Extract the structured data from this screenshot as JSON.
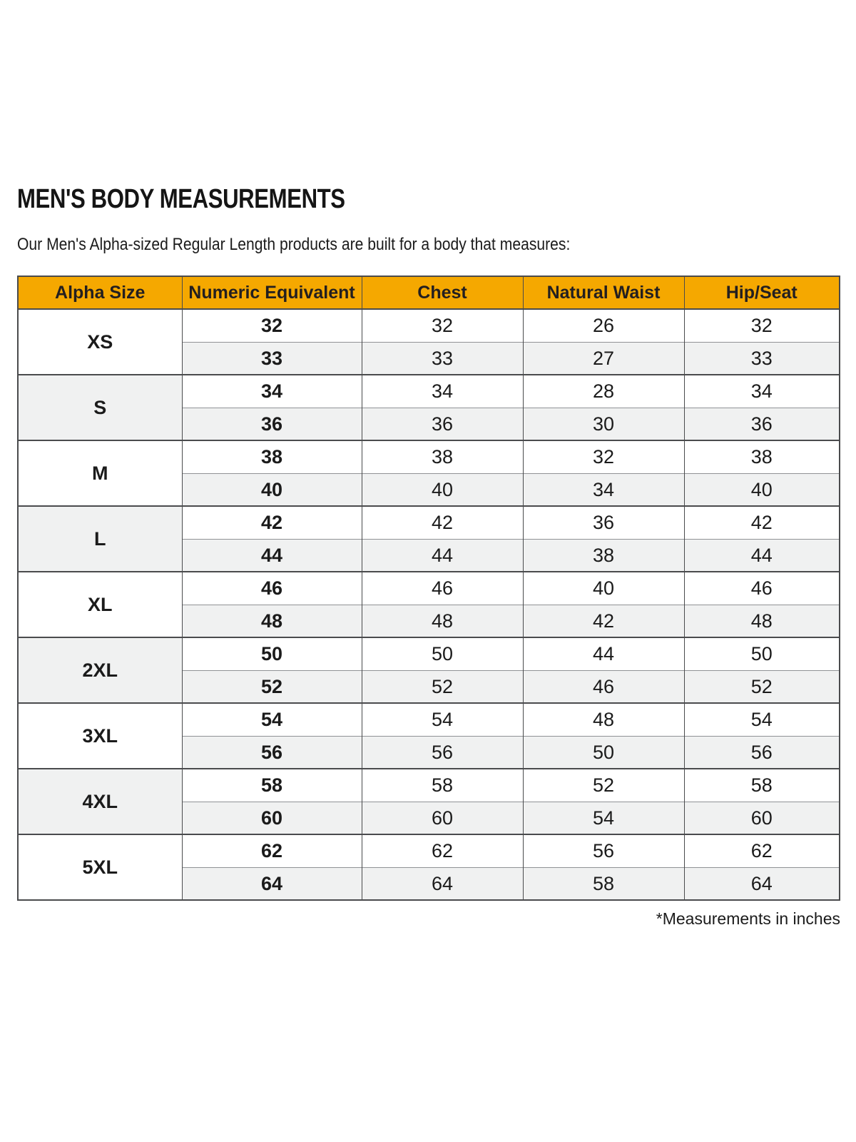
{
  "page": {
    "title": "MEN'S BODY MEASUREMENTS",
    "subtitle": "Our Men's Alpha-sized Regular Length products are built for a body that measures:",
    "footnote": "*Measurements in inches"
  },
  "colors": {
    "header_bg": "#F5A800",
    "header_text": "#231F20",
    "row_alt_bg": "#F0F1F1",
    "border_dark": "#4A4B4D",
    "border_mid": "#909295",
    "text": "#1B1B1B"
  },
  "table": {
    "headers": [
      "Alpha Size",
      "Numeric Equivalent",
      "Chest",
      "Natural Waist",
      "Hip/Seat"
    ],
    "groups": [
      {
        "alpha": "XS",
        "rows": [
          [
            "32",
            "32",
            "26",
            "32"
          ],
          [
            "33",
            "33",
            "27",
            "33"
          ]
        ]
      },
      {
        "alpha": "S",
        "rows": [
          [
            "34",
            "34",
            "28",
            "34"
          ],
          [
            "36",
            "36",
            "30",
            "36"
          ]
        ]
      },
      {
        "alpha": "M",
        "rows": [
          [
            "38",
            "38",
            "32",
            "38"
          ],
          [
            "40",
            "40",
            "34",
            "40"
          ]
        ]
      },
      {
        "alpha": "L",
        "rows": [
          [
            "42",
            "42",
            "36",
            "42"
          ],
          [
            "44",
            "44",
            "38",
            "44"
          ]
        ]
      },
      {
        "alpha": "XL",
        "rows": [
          [
            "46",
            "46",
            "40",
            "46"
          ],
          [
            "48",
            "48",
            "42",
            "48"
          ]
        ]
      },
      {
        "alpha": "2XL",
        "rows": [
          [
            "50",
            "50",
            "44",
            "50"
          ],
          [
            "52",
            "52",
            "46",
            "52"
          ]
        ]
      },
      {
        "alpha": "3XL",
        "rows": [
          [
            "54",
            "54",
            "48",
            "54"
          ],
          [
            "56",
            "56",
            "50",
            "56"
          ]
        ]
      },
      {
        "alpha": "4XL",
        "rows": [
          [
            "58",
            "58",
            "52",
            "58"
          ],
          [
            "60",
            "60",
            "54",
            "60"
          ]
        ]
      },
      {
        "alpha": "5XL",
        "rows": [
          [
            "62",
            "62",
            "56",
            "62"
          ],
          [
            "64",
            "64",
            "58",
            "64"
          ]
        ]
      }
    ]
  },
  "chart_data": {
    "type": "table",
    "title": "MEN'S BODY MEASUREMENTS",
    "subtitle": "Our Men's Alpha-sized Regular Length products are built for a body that measures:",
    "units": "inches",
    "columns": [
      "Alpha Size",
      "Numeric Equivalent",
      "Chest",
      "Natural Waist",
      "Hip/Seat"
    ],
    "rows": [
      [
        "XS",
        32,
        32,
        26,
        32
      ],
      [
        "XS",
        33,
        33,
        27,
        33
      ],
      [
        "S",
        34,
        34,
        28,
        34
      ],
      [
        "S",
        36,
        36,
        30,
        36
      ],
      [
        "M",
        38,
        38,
        32,
        38
      ],
      [
        "M",
        40,
        40,
        34,
        40
      ],
      [
        "L",
        42,
        42,
        36,
        42
      ],
      [
        "L",
        44,
        44,
        38,
        44
      ],
      [
        "XL",
        46,
        46,
        40,
        46
      ],
      [
        "XL",
        48,
        48,
        42,
        48
      ],
      [
        "2XL",
        50,
        50,
        44,
        50
      ],
      [
        "2XL",
        52,
        52,
        46,
        52
      ],
      [
        "3XL",
        54,
        54,
        48,
        54
      ],
      [
        "3XL",
        56,
        56,
        50,
        56
      ],
      [
        "4XL",
        58,
        58,
        52,
        58
      ],
      [
        "4XL",
        60,
        60,
        54,
        60
      ],
      [
        "5XL",
        62,
        62,
        56,
        62
      ],
      [
        "5XL",
        64,
        64,
        58,
        64
      ]
    ],
    "footnote": "*Measurements in inches"
  }
}
